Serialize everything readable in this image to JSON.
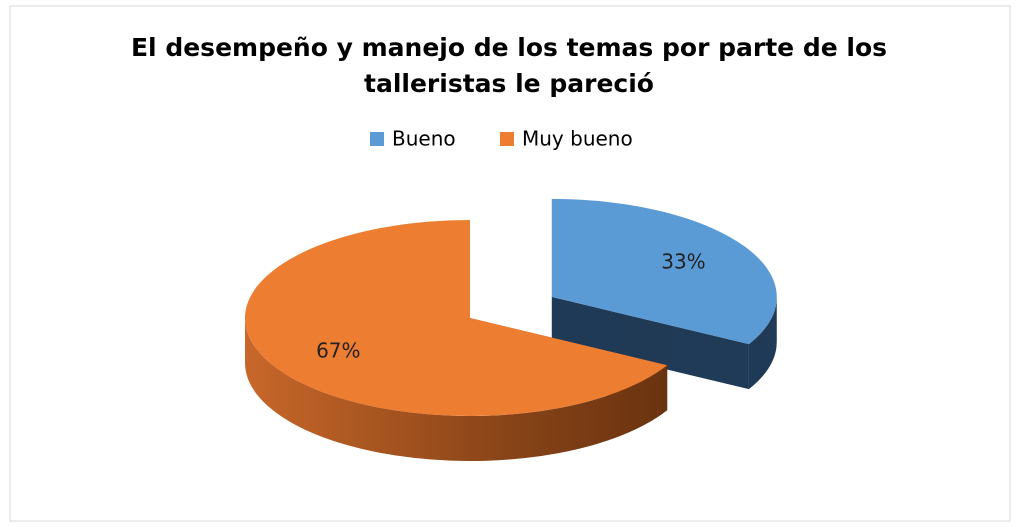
{
  "chart_data": {
    "type": "pie3d",
    "title": "El desempeño y manejo de los temas por parte de los talleristas le pareció",
    "categories": [
      "Bueno",
      "Muy bueno"
    ],
    "values": [
      33,
      67
    ],
    "value_labels": [
      "33%",
      "67%"
    ],
    "colors": [
      "#5b9bd5",
      "#ed7d31"
    ],
    "legend": "top"
  }
}
